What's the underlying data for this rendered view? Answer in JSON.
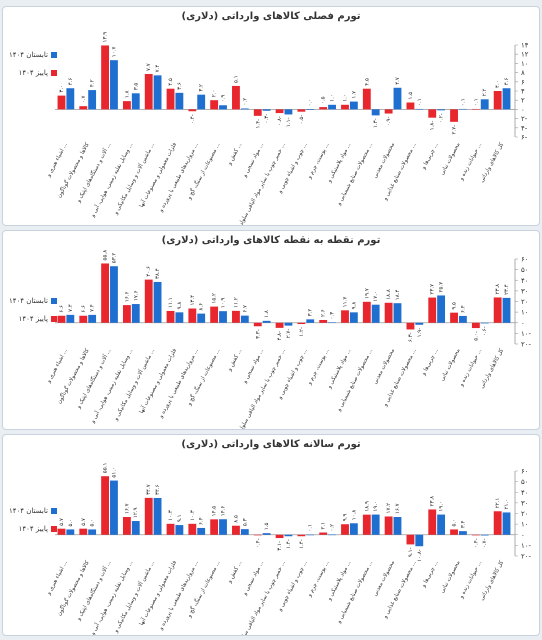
{
  "colors": {
    "summer": "#1f6fd1",
    "autumn": "#e8262d",
    "axis": "#999999",
    "grid": "#dddddd",
    "text": "#333333"
  },
  "legend": {
    "summer": "تابستان ۱۴۰۴",
    "autumn": "پاییز ۱۴۰۴"
  },
  "categories": [
    "کل کالاهای وارداتی",
    "حیوانات زنده و ...",
    "محصولات نباتی",
    "چربی‌ها و ...",
    "محصولات صنایع غذایی و ...",
    "محصولات معدنی",
    "محصولات صنایع شیمیایی و ...",
    "مواد پلاستیکی و ...",
    "پوست، چرم و ...",
    "چوب و اشیاء چوبی و ...",
    "خمیر چوب یا سایر مواد الیافی سلولزی و ...",
    "مواد نسجی و ...",
    "کفش و ...",
    "مصنوعات از سنگ، گچ و ...",
    "مرواریدهای طبیعی یا پرورده و ...",
    "فلزات معمولی و مصنوعات آنها",
    "ماشین آلات و وسایل مکانیکی و ...",
    "وسایل نقلیه زمینی، هوایی، آبی و ...",
    "آلات و دستگاه‌های اپتیک و ...",
    "کالاها و محصولات گوناگون",
    "اشیاء هنری و ..."
  ],
  "chart_data": [
    {
      "type": "bar",
      "title": "تورم فصلی کالاهای وارداتی (دلاری)",
      "categories_ref": "categories",
      "ylim": [
        -6,
        14
      ],
      "yticks": [
        -6,
        -4,
        -2,
        0,
        2,
        4,
        6,
        8,
        10,
        12,
        14
      ],
      "ytick_labels": [
        "۶-",
        "۴-",
        "۲-",
        "۰",
        "۲",
        "۴",
        "۶",
        "۸",
        "۱۰",
        "۱۲",
        "۱۴"
      ],
      "series": [
        {
          "name": "تابستان ۱۴۰۴",
          "values": [
            4.6,
            2.2,
            0.1,
            -0.2,
            0.1,
            4.7,
            -1.3,
            1.7,
            1.0,
            0.0,
            -1.1,
            -0.3,
            0.2,
            0.9,
            3.2,
            3.6,
            7.4,
            3.5,
            10.7,
            4.2,
            4.6
          ],
          "labels": [
            "۴.۶",
            "۲.۲",
            "۰.۱",
            "۰.۲-",
            "۰.۱",
            "۴.۷",
            "۱.۳-",
            "۱.۷",
            "۱.۰",
            "۰.۰",
            "۱.۱-",
            "۰.۳-",
            "۰.۲",
            "۰.۹",
            "۳.۲",
            "۳.۶",
            "۷.۴",
            "۳.۵",
            "۱۰.۷",
            "۴.۲",
            "۴.۶"
          ]
        },
        {
          "name": "پاییز ۱۴۰۴",
          "values": [
            4.0,
            0.1,
            -2.7,
            -1.8,
            1.5,
            -0.9,
            4.5,
            1.0,
            0.5,
            -0.5,
            -0.8,
            -1.4,
            5.1,
            2.0,
            -0.4,
            4.5,
            7.7,
            1.8,
            13.9,
            0.7,
            3.0
          ],
          "labels": [
            "۴.۰",
            "۰.۱",
            "۲.۷-",
            "۱.۸-",
            "۱.۵",
            "۰.۹-",
            "۴.۵",
            "۱.۰",
            "۰.۵",
            "۰.۵-",
            "۰.۸-",
            "۱.۴-",
            "۵.۱",
            "۲.۰",
            "۰.۴-",
            "۴.۵",
            "۷.۷",
            "۱.۸",
            "۱۳.۹",
            "۰.۷",
            "۳.۰"
          ]
        }
      ]
    },
    {
      "type": "bar",
      "title": "تورم نقطه به نقطه کالاهای وارداتی (دلاری)",
      "categories_ref": "categories",
      "ylim": [
        -20,
        60
      ],
      "yticks": [
        -20,
        -10,
        0,
        10,
        20,
        30,
        40,
        50,
        60
      ],
      "ytick_labels": [
        "۲۰-",
        "۱۰-",
        "۰",
        "۱۰",
        "۲۰",
        "۳۰",
        "۴۰",
        "۵۰",
        "۶۰"
      ],
      "series": [
        {
          "name": "تابستان ۱۴۰۴",
          "values": [
            23.4,
            -0.6,
            6.4,
            25.7,
            -1.9,
            18.4,
            17.0,
            9.8,
            0.3,
            3.2,
            -2.7,
            1.8,
            6.7,
            10.9,
            8.6,
            9.8,
            38.4,
            17.6,
            53.2,
            7.4,
            7.4
          ],
          "labels": [
            "۲۳.۴",
            "۰.۶-",
            "۶.۴",
            "۲۵.۷",
            "۱.۹-",
            "۱۸.۴",
            "۱۷.۰",
            "۹.۸",
            "۰.۳",
            "۳.۲",
            "۲.۷-",
            "۱.۸",
            "۶.۷",
            "۱۰.۹",
            "۸.۶",
            "۹.۸",
            "۳۸.۴",
            "۱۷.۶",
            "۵۳.۲",
            "۷.۴",
            "۷.۴"
          ]
        },
        {
          "name": "پاییز ۱۴۰۴",
          "values": [
            23.8,
            -5.0,
            9.5,
            23.7,
            -6.3,
            18.8,
            19.7,
            11.7,
            2.6,
            -1.2,
            -4.8,
            -3.3,
            11.2,
            15.2,
            13.4,
            11.1,
            40.6,
            16.6,
            55.8,
            6.6,
            6.6
          ],
          "labels": [
            "۲۳.۸",
            "۵.۰-",
            "۹.۵",
            "۲۳.۷",
            "۶.۳-",
            "۱۸.۸",
            "۱۹.۷",
            "۱۱.۷",
            "۲.۶",
            "۱.۲-",
            "۴.۸-",
            "۳.۳-",
            "۱۱.۲",
            "۱۵.۲",
            "۱۳.۴",
            "۱۱.۱",
            "۴۰.۶",
            "۱۶.۶",
            "۵۵.۸",
            "۶.۶",
            "۶.۶"
          ]
        }
      ]
    },
    {
      "type": "bar",
      "title": "تورم سالانه کالاهای وارداتی (دلاری)",
      "categories_ref": "categories",
      "ylim": [
        -20,
        60
      ],
      "yticks": [
        -20,
        -10,
        0,
        10,
        20,
        30,
        40,
        50,
        60
      ],
      "ytick_labels": [
        "۲۰-",
        "۱۰-",
        "۰",
        "۱۰",
        "۲۰",
        "۳۰",
        "۴۰",
        "۵۰",
        "۶۰"
      ],
      "series": [
        {
          "name": "تابستان ۱۴۰۴",
          "values": [
            21.0,
            -0.7,
            3.4,
            19.0,
            -10.8,
            16.7,
            19.0,
            10.8,
            0.2,
            0.1,
            -1.4,
            1.5,
            5.3,
            14.6,
            6.4,
            9.1,
            34.6,
            12.9,
            51.0,
            5.0,
            5.0
          ],
          "labels": [
            "۲۱.۰",
            "۰.۷-",
            "۳.۴",
            "۱۹.۰",
            "۱۰.۸-",
            "۱۶.۷",
            "۱۹.۰",
            "۱۰.۸",
            "۰.۲",
            "۰.۱",
            "۱.۴-",
            "۱.۵",
            "۵.۳",
            "۱۴.۶",
            "۶.۴",
            "۹.۱",
            "۳۴.۶",
            "۱۲.۹",
            "۵۱.۰",
            "۵.۰",
            "۵.۰"
          ]
        },
        {
          "name": "پاییز ۱۴۰۴",
          "values": [
            22.1,
            -0.4,
            5.0,
            23.8,
            -9.1,
            17.2,
            18.9,
            9.9,
            2.1,
            -1.4,
            -3.1,
            -0.4,
            8.5,
            14.5,
            10.3,
            10.3,
            34.7,
            16.7,
            55.1,
            5.7,
            5.7
          ],
          "labels": [
            "۲۲.۱",
            "۰.۴-",
            "۵.۰",
            "۲۳.۸",
            "۹.۱-",
            "۱۷.۲",
            "۱۸.۹",
            "۹.۹",
            "۲.۱",
            "۱.۴-",
            "۳.۱-",
            "۰.۴-",
            "۸.۵",
            "۱۴.۵",
            "۱۰.۳",
            "۱۰.۳",
            "۳۴.۷",
            "۱۶.۷",
            "۵۵.۱",
            "۵.۷",
            "۵.۷"
          ]
        }
      ]
    }
  ]
}
